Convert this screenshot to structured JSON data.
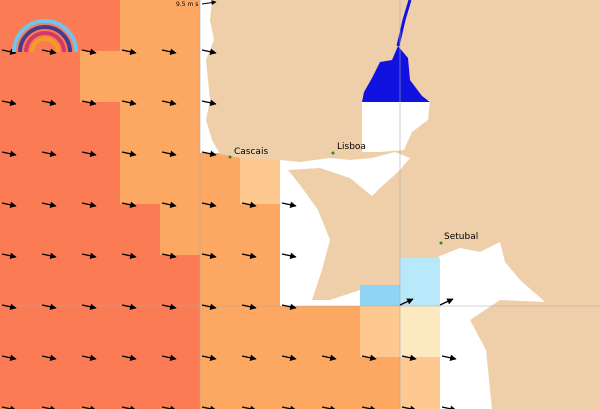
{
  "scale_label": "9.5 m s",
  "places": [
    {
      "name": "Cascais"
    },
    {
      "name": "Lisboa"
    },
    {
      "name": "Setubal"
    }
  ]
}
